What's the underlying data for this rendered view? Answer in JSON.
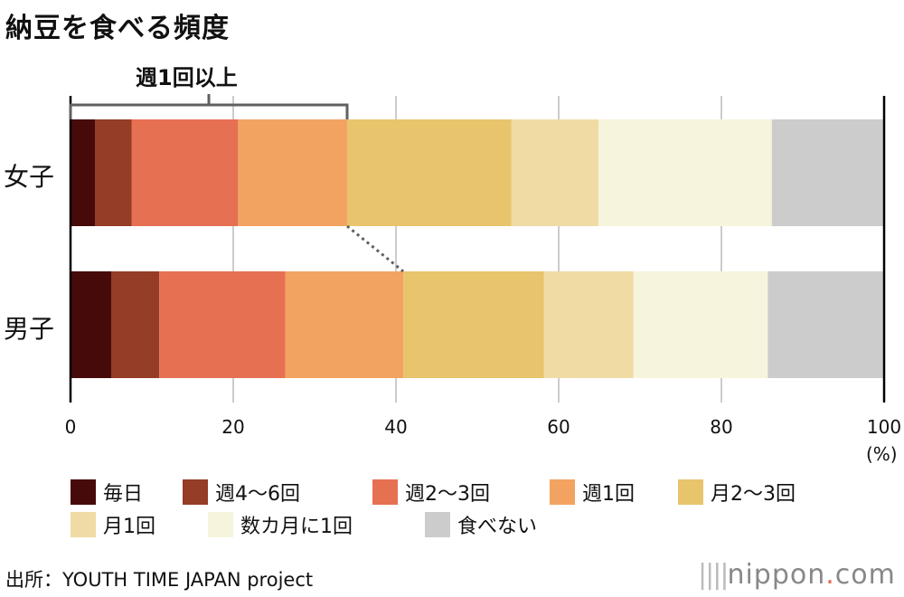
{
  "chart_data": {
    "type": "bar",
    "orientation": "horizontal",
    "stacked": true,
    "title": "納豆を食べる頻度",
    "categories": [
      "女子",
      "男子"
    ],
    "series": [
      {
        "name": "毎日",
        "color": "#470a0a",
        "values": [
          3.0,
          5.0
        ]
      },
      {
        "name": "週4〜6回",
        "color": "#953d26",
        "values": [
          4.5,
          5.9
        ]
      },
      {
        "name": "週2〜3回",
        "color": "#e67052",
        "values": [
          13.1,
          15.5
        ]
      },
      {
        "name": "週1回",
        "color": "#f2a361",
        "values": [
          13.4,
          14.5
        ]
      },
      {
        "name": "月2〜3回",
        "color": "#e8c46c",
        "values": [
          20.2,
          17.3
        ]
      },
      {
        "name": "月1回",
        "color": "#f1dba5",
        "values": [
          10.7,
          11.0
        ]
      },
      {
        "name": "数カ月に1回",
        "color": "#f6f4dc",
        "values": [
          21.3,
          16.5
        ]
      },
      {
        "name": "食べない",
        "color": "#cccccc",
        "values": [
          13.8,
          14.3
        ]
      }
    ],
    "xlim": [
      0,
      100
    ],
    "xticks": [
      "0",
      "20",
      "40",
      "60",
      "80",
      "100"
    ],
    "xunit": "(%)",
    "grid": true,
    "legend": "bottom",
    "annotation": "週1回以上"
  },
  "source": "出所：YOUTH TIME JAPAN project",
  "logo": {
    "name": "nippon",
    "dot": ".",
    "tld": "com"
  }
}
